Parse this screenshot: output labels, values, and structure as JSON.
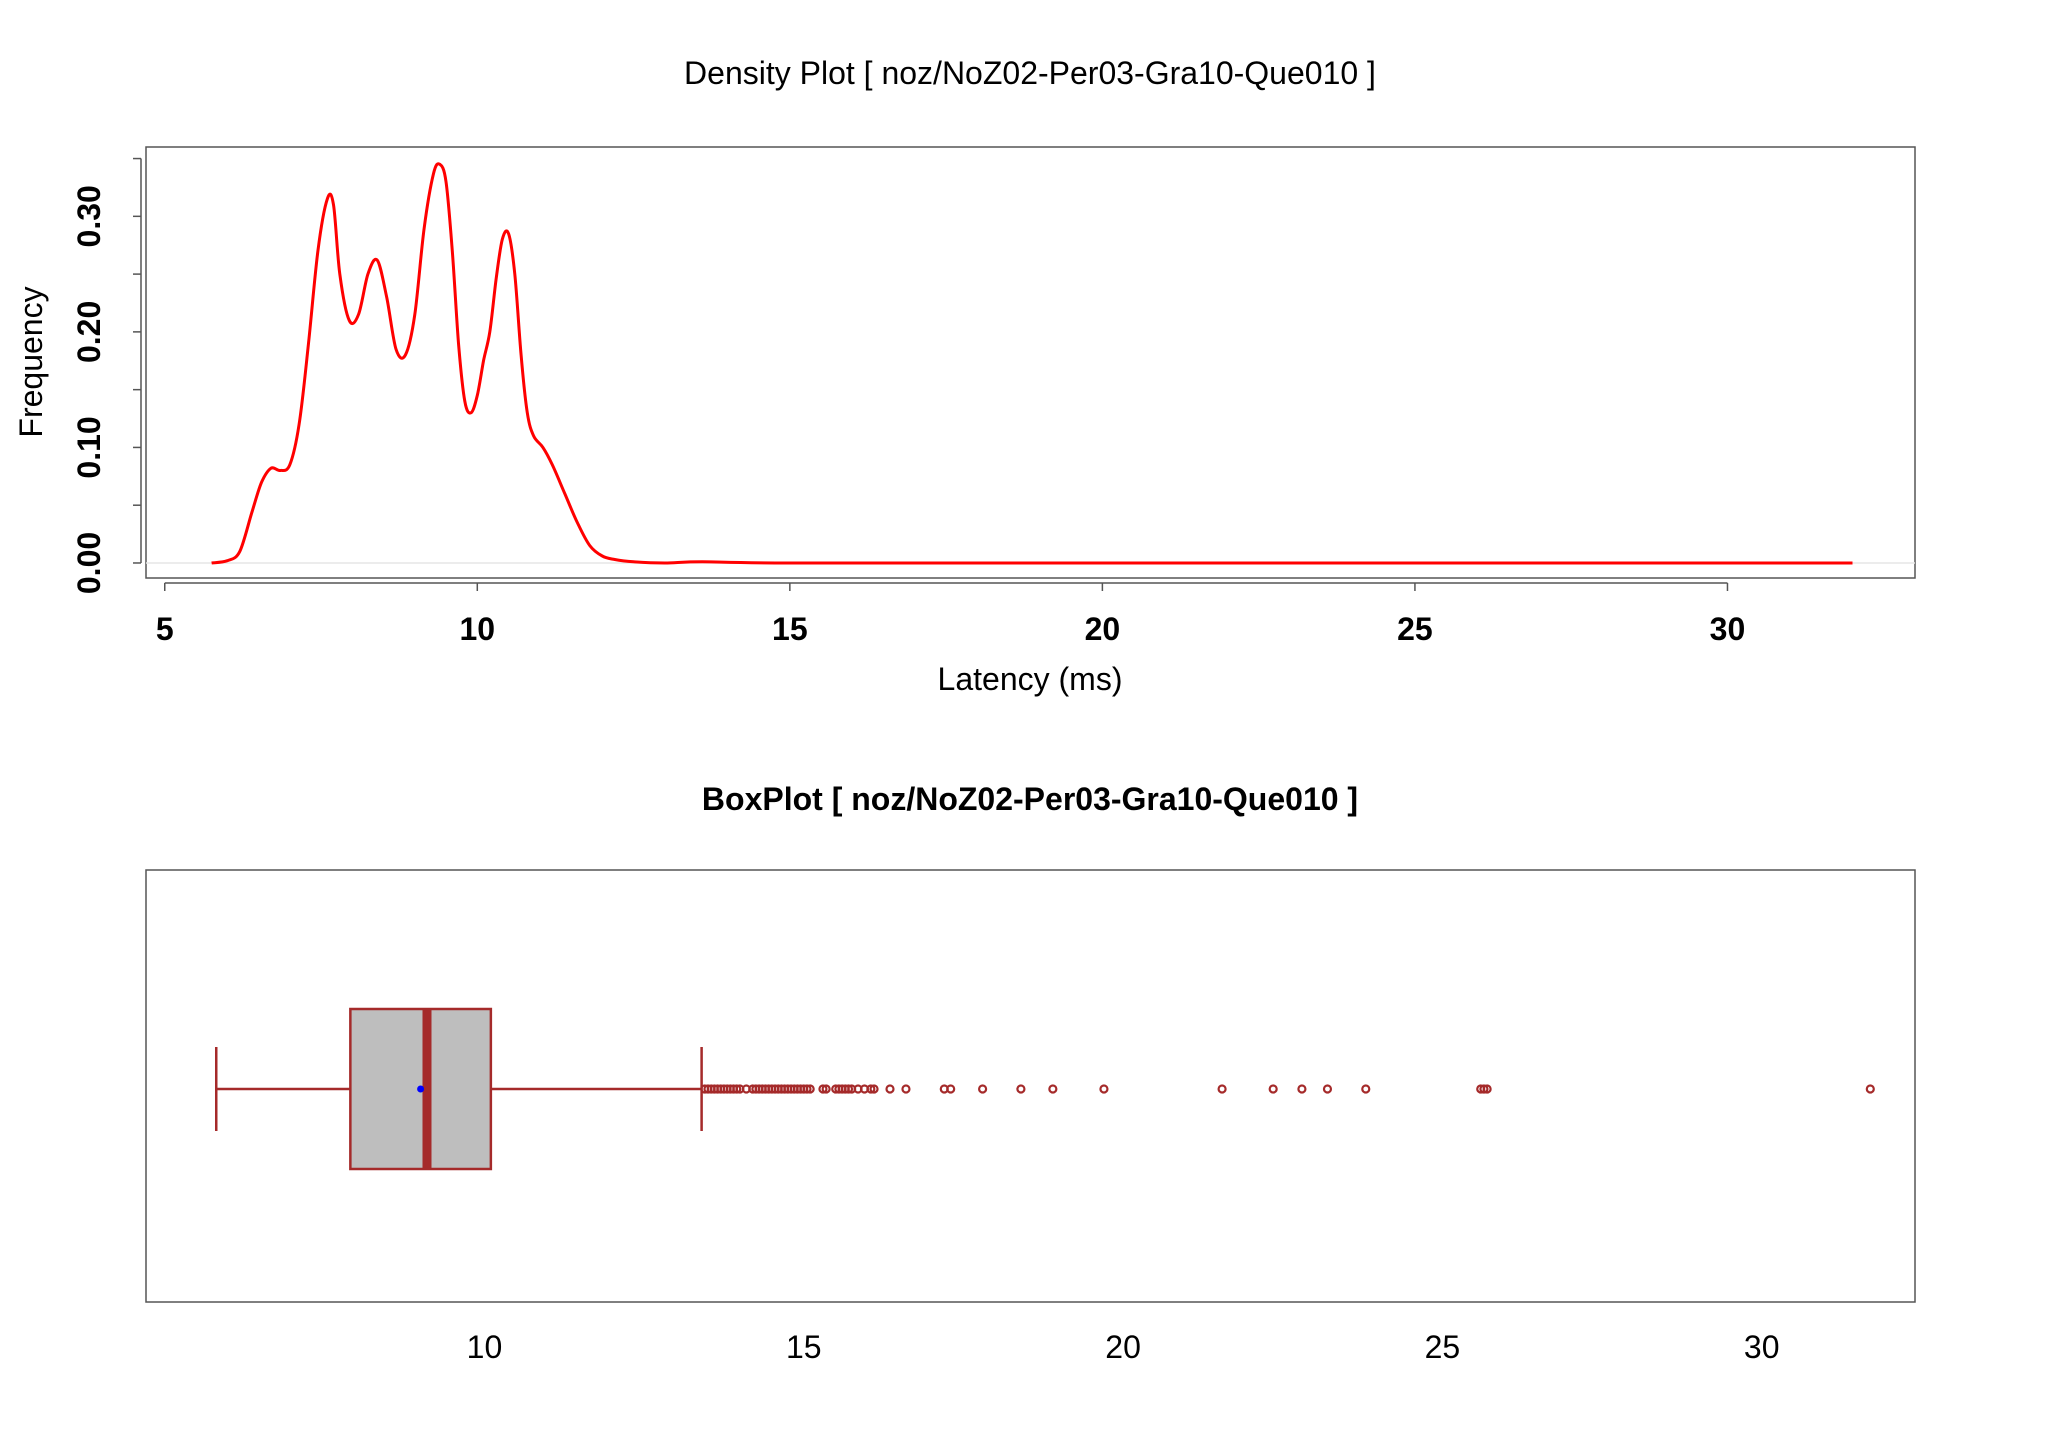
{
  "chart_data": [
    {
      "type": "line",
      "title": "Density Plot [ noz/NoZ02-Per03-Gra10-Que010 ]",
      "xlabel": "Latency (ms)",
      "ylabel": "Frequency",
      "xlim": [
        4.7,
        33.0
      ],
      "ylim": [
        -0.013,
        0.36
      ],
      "x_ticks": [
        5,
        10,
        15,
        20,
        25,
        30
      ],
      "x_tick_labels": [
        "5",
        "10",
        "15",
        "20",
        "25",
        "30"
      ],
      "y_ticks": [
        0.0,
        0.05,
        0.1,
        0.15,
        0.2,
        0.25,
        0.3,
        0.35
      ],
      "y_tick_labels": [
        "0.00",
        "",
        "0.10",
        "",
        "0.20",
        "",
        "0.30",
        ""
      ],
      "grid": false,
      "line_color": "#ff0000",
      "series": [
        {
          "x": [
            5.75,
            6.0,
            6.2,
            6.4,
            6.55,
            6.7,
            6.85,
            7.0,
            7.15,
            7.3,
            7.45,
            7.6,
            7.7,
            7.8,
            7.95,
            8.1,
            8.25,
            8.4,
            8.55,
            8.7,
            8.85,
            9.0,
            9.15,
            9.3,
            9.4,
            9.5,
            9.6,
            9.7,
            9.8,
            9.9,
            10.0,
            10.1,
            10.2,
            10.3,
            10.4,
            10.5,
            10.6,
            10.7,
            10.8,
            10.9,
            11.05,
            11.2,
            11.4,
            11.6,
            11.8,
            12.0,
            12.2,
            12.5,
            13.0,
            13.6,
            15.0,
            20.0,
            25.0,
            30.0,
            32.0
          ],
          "y": [
            0.0,
            0.002,
            0.01,
            0.045,
            0.07,
            0.082,
            0.08,
            0.085,
            0.12,
            0.19,
            0.27,
            0.315,
            0.31,
            0.25,
            0.21,
            0.215,
            0.25,
            0.262,
            0.23,
            0.185,
            0.18,
            0.215,
            0.29,
            0.337,
            0.345,
            0.33,
            0.27,
            0.19,
            0.14,
            0.13,
            0.145,
            0.175,
            0.2,
            0.245,
            0.28,
            0.285,
            0.25,
            0.18,
            0.13,
            0.11,
            0.1,
            0.085,
            0.06,
            0.035,
            0.015,
            0.006,
            0.003,
            0.001,
            0.0,
            0.001,
            0.0,
            0.0,
            0.0,
            0.0,
            0.0
          ]
        }
      ]
    },
    {
      "type": "box",
      "title": "BoxPlot [ noz/NoZ02-Per03-Gra10-Que010 ]",
      "xlim": [
        4.7,
        32.4
      ],
      "x_ticks": [
        10,
        15,
        20,
        25,
        30
      ],
      "x_tick_labels": [
        "10",
        "15",
        "20",
        "25",
        "30"
      ],
      "whisker_low": 5.8,
      "q1": 7.9,
      "median": 9.1,
      "mean": 9.0,
      "q3": 10.1,
      "whisker_high": 13.4,
      "box_fill": "#bebebe",
      "box_color": "#a52a2a",
      "mean_color": "#0000ff",
      "outliers": [
        13.45,
        13.5,
        13.55,
        13.6,
        13.65,
        13.7,
        13.75,
        13.8,
        13.85,
        13.9,
        13.95,
        14.0,
        14.1,
        14.2,
        14.25,
        14.3,
        14.35,
        14.4,
        14.45,
        14.5,
        14.55,
        14.6,
        14.65,
        14.7,
        14.75,
        14.8,
        14.85,
        14.9,
        14.95,
        15.0,
        15.05,
        15.1,
        15.3,
        15.35,
        15.5,
        15.55,
        15.6,
        15.65,
        15.7,
        15.75,
        15.85,
        15.95,
        16.05,
        16.1,
        16.35,
        16.6,
        17.2,
        17.3,
        17.8,
        18.4,
        18.9,
        19.7,
        21.55,
        22.35,
        22.8,
        23.2,
        23.8,
        25.6,
        25.65,
        25.7,
        31.7
      ]
    }
  ]
}
